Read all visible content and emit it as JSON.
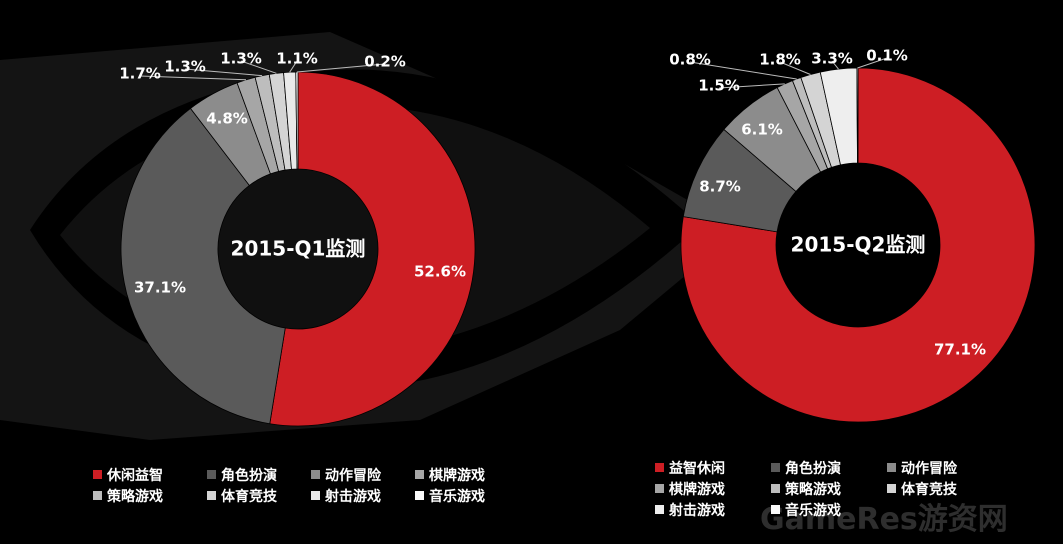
{
  "chart_data": [
    {
      "type": "pie",
      "title": "2015-Q1监测",
      "categories": [
        "休闲益智",
        "角色扮演",
        "动作冒险",
        "棋牌游戏",
        "策略游戏",
        "体育竞技",
        "射击游戏",
        "音乐游戏"
      ],
      "values": [
        52.6,
        37.1,
        4.8,
        1.7,
        1.3,
        1.3,
        1.1,
        0.2
      ],
      "labels": [
        "52.6%",
        "37.1%",
        "4.8%",
        "1.7%",
        "1.3%",
        "1.3%",
        "1.1%",
        "0.2%"
      ],
      "colors": [
        "#cd1e24",
        "#5a5a5a",
        "#8c8c8c",
        "#a6a6a6",
        "#bdbdbd",
        "#d4d4d4",
        "#e9e9e9",
        "#fafafa"
      ],
      "legend": [
        "休闲益智",
        "角色扮演",
        "动作冒险",
        "棋牌游戏",
        "策略游戏",
        "体育竞技",
        "射击游戏",
        "音乐游戏"
      ],
      "legend_position": "bottom"
    },
    {
      "type": "pie",
      "title": "2015-Q2监测",
      "categories": [
        "益智休闲",
        "角色扮演",
        "动作冒险",
        "棋牌游戏",
        "策略游戏",
        "体育竞技",
        "射击游戏",
        "音乐游戏"
      ],
      "values": [
        77.1,
        8.7,
        6.1,
        1.5,
        0.8,
        1.8,
        3.3,
        0.1
      ],
      "labels": [
        "77.1%",
        "8.7%",
        "6.1%",
        "1.5%",
        "0.8%",
        "1.8%",
        "3.3%",
        "0.1%"
      ],
      "colors": [
        "#cd1e24",
        "#5a5a5a",
        "#8c8c8c",
        "#a6a6a6",
        "#bdbdbd",
        "#d4d4d4",
        "#eeeeee",
        "#fafafa"
      ],
      "legend": [
        "益智休闲",
        "角色扮演",
        "动作冒险",
        "棋牌游戏",
        "策略游戏",
        "体育竞技",
        "射击游戏",
        "音乐游戏"
      ],
      "legend_position": "bottom"
    }
  ],
  "watermark": "GameRes游资网"
}
